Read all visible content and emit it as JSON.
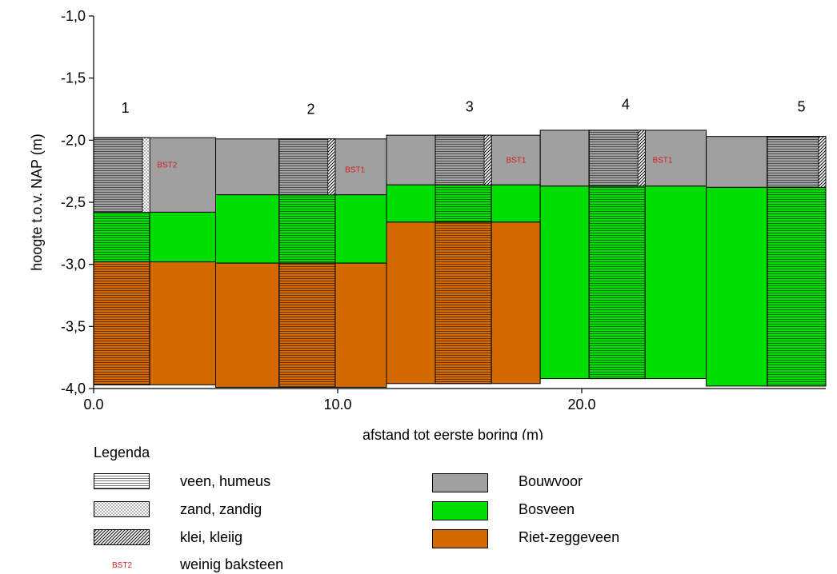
{
  "axes": {
    "ylabel": "hoogte t.o.v. NAP (m)",
    "xlabel": "afstand tot eerste boring (m)",
    "y_ticks": [
      "-1,0",
      "-1,5",
      "-2,0",
      "-2,5",
      "-3,0",
      "-3,5",
      "-4,0"
    ],
    "x_ticks": [
      "0.0",
      "10.0",
      "20.0"
    ]
  },
  "borings": [
    {
      "label": "1",
      "x": 1.3,
      "y": -1.78
    },
    {
      "label": "2",
      "x": 8.9,
      "y": -1.79
    },
    {
      "label": "3",
      "x": 15.4,
      "y": -1.77
    },
    {
      "label": "4",
      "x": 21.8,
      "y": -1.75
    },
    {
      "label": "5",
      "x": 29.0,
      "y": -1.77
    }
  ],
  "bst_labels": [
    {
      "text": "BST2",
      "x": 2.6,
      "y": -2.22
    },
    {
      "text": "BST1",
      "x": 10.3,
      "y": -2.26
    },
    {
      "text": "BST1",
      "x": 16.9,
      "y": -2.18
    },
    {
      "text": "BST1",
      "x": 22.9,
      "y": -2.18
    }
  ],
  "legend": {
    "title": "Legenda",
    "lithology": [
      {
        "label": "veen, humeus",
        "pattern": "hlines"
      },
      {
        "label": "zand, zandig",
        "pattern": "dots"
      },
      {
        "label": "klei, kleiig",
        "pattern": "diag"
      },
      {
        "label": "weinig baksteen",
        "pattern": "bst",
        "symbol": "BST2"
      }
    ],
    "units": [
      {
        "label": "Bouwvoor",
        "color": "#a0a0a0"
      },
      {
        "label": "Bosveen",
        "color": "#00dd00"
      },
      {
        "label": "Riet-zeggeveen",
        "color": "#d26a00"
      }
    ]
  },
  "chart_data": {
    "type": "cross-section",
    "xlabel": "afstand tot eerste boring (m)",
    "ylabel": "hoogte t.o.v. NAP (m)",
    "xlim": [
      0,
      30
    ],
    "ylim": [
      -4.0,
      -1.0
    ],
    "colors": {
      "Bouwvoor": "#a0a0a0",
      "Bosveen": "#00dd00",
      "Riet-zeggeveen": "#d26a00"
    },
    "columns": [
      {
        "name": "boring-1",
        "x0": 0.0,
        "x1": 2.3,
        "hatch": true,
        "layers": [
          {
            "unit": "Bouwvoor",
            "top": -1.98,
            "bottom": -2.58
          },
          {
            "unit": "Bosveen",
            "top": -2.58,
            "bottom": -2.98
          },
          {
            "unit": "Riet-zeggeveen",
            "top": -2.98,
            "bottom": -3.97
          }
        ]
      },
      {
        "name": "panel-1-2",
        "x0": 2.3,
        "x1": 5.0,
        "hatch": false,
        "layers": [
          {
            "unit": "Bouwvoor",
            "top": -1.98,
            "bottom": -2.58
          },
          {
            "unit": "Bosveen",
            "top": -2.58,
            "bottom": -2.98
          },
          {
            "unit": "Riet-zeggeveen",
            "top": -2.98,
            "bottom": -3.97
          }
        ]
      },
      {
        "name": "panel-2-left",
        "x0": 5.0,
        "x1": 7.6,
        "hatch": false,
        "layers": [
          {
            "unit": "Bouwvoor",
            "top": -1.99,
            "bottom": -2.44
          },
          {
            "unit": "Bosveen",
            "top": -2.44,
            "bottom": -2.99
          },
          {
            "unit": "Riet-zeggeveen",
            "top": -2.99,
            "bottom": -3.99
          }
        ]
      },
      {
        "name": "boring-2",
        "x0": 7.6,
        "x1": 9.9,
        "hatch": true,
        "layers": [
          {
            "unit": "Bouwvoor",
            "top": -1.99,
            "bottom": -2.44
          },
          {
            "unit": "Bosveen",
            "top": -2.44,
            "bottom": -2.99
          },
          {
            "unit": "Riet-zeggeveen",
            "top": -2.99,
            "bottom": -3.99
          }
        ]
      },
      {
        "name": "panel-2-right",
        "x0": 9.9,
        "x1": 12.0,
        "hatch": false,
        "layers": [
          {
            "unit": "Bouwvoor",
            "top": -1.99,
            "bottom": -2.44
          },
          {
            "unit": "Bosveen",
            "top": -2.44,
            "bottom": -2.99
          },
          {
            "unit": "Riet-zeggeveen",
            "top": -2.99,
            "bottom": -3.99
          }
        ]
      },
      {
        "name": "panel-3-left",
        "x0": 12.0,
        "x1": 14.0,
        "hatch": false,
        "layers": [
          {
            "unit": "Bouwvoor",
            "top": -1.96,
            "bottom": -2.36
          },
          {
            "unit": "Bosveen",
            "top": -2.36,
            "bottom": -2.66
          },
          {
            "unit": "Riet-zeggeveen",
            "top": -2.66,
            "bottom": -3.96
          }
        ]
      },
      {
        "name": "boring-3",
        "x0": 14.0,
        "x1": 16.3,
        "hatch": true,
        "layers": [
          {
            "unit": "Bouwvoor",
            "top": -1.96,
            "bottom": -2.36
          },
          {
            "unit": "Bosveen",
            "top": -2.36,
            "bottom": -2.66
          },
          {
            "unit": "Riet-zeggeveen",
            "top": -2.66,
            "bottom": -3.96
          }
        ]
      },
      {
        "name": "panel-3-right",
        "x0": 16.3,
        "x1": 18.3,
        "hatch": false,
        "layers": [
          {
            "unit": "Bouwvoor",
            "top": -1.96,
            "bottom": -2.36
          },
          {
            "unit": "Bosveen",
            "top": -2.36,
            "bottom": -2.66
          },
          {
            "unit": "Riet-zeggeveen",
            "top": -2.66,
            "bottom": -3.96
          }
        ]
      },
      {
        "name": "panel-4-left",
        "x0": 18.3,
        "x1": 20.3,
        "hatch": false,
        "layers": [
          {
            "unit": "Bouwvoor",
            "top": -1.92,
            "bottom": -2.37
          },
          {
            "unit": "Bosveen",
            "top": -2.37,
            "bottom": -3.92
          }
        ]
      },
      {
        "name": "boring-4",
        "x0": 20.3,
        "x1": 22.6,
        "hatch": true,
        "layers": [
          {
            "unit": "Bouwvoor",
            "top": -1.92,
            "bottom": -2.37
          },
          {
            "unit": "Bosveen",
            "top": -2.37,
            "bottom": -3.92
          }
        ]
      },
      {
        "name": "panel-4-right",
        "x0": 22.6,
        "x1": 25.1,
        "hatch": false,
        "layers": [
          {
            "unit": "Bouwvoor",
            "top": -1.92,
            "bottom": -2.37
          },
          {
            "unit": "Bosveen",
            "top": -2.37,
            "bottom": -3.92
          }
        ]
      },
      {
        "name": "panel-5-left",
        "x0": 25.1,
        "x1": 27.6,
        "hatch": false,
        "layers": [
          {
            "unit": "Bouwvoor",
            "top": -1.97,
            "bottom": -2.38
          },
          {
            "unit": "Bosveen",
            "top": -2.38,
            "bottom": -3.98
          }
        ]
      },
      {
        "name": "boring-5",
        "x0": 27.6,
        "x1": 30.0,
        "hatch": true,
        "layers": [
          {
            "unit": "Bouwvoor",
            "top": -1.97,
            "bottom": -2.38
          },
          {
            "unit": "Bosveen",
            "top": -2.38,
            "bottom": -3.98
          }
        ]
      }
    ],
    "boring_strips": [
      {
        "name": "boring-1",
        "x0": 2.0,
        "x1": 2.3,
        "top": -1.98,
        "bottom": -2.58,
        "pattern": "dots"
      },
      {
        "name": "boring-2",
        "x0": 9.6,
        "x1": 9.9,
        "top": -1.99,
        "bottom": -2.44,
        "pattern": "diag"
      },
      {
        "name": "boring-3",
        "x0": 16.0,
        "x1": 16.3,
        "top": -1.96,
        "bottom": -2.36,
        "pattern": "diag"
      },
      {
        "name": "boring-4",
        "x0": 22.3,
        "x1": 22.6,
        "top": -1.92,
        "bottom": -2.37,
        "pattern": "diag"
      },
      {
        "name": "boring-5",
        "x0": 29.7,
        "x1": 30.0,
        "top": -1.97,
        "bottom": -2.38,
        "pattern": "diag"
      }
    ]
  }
}
